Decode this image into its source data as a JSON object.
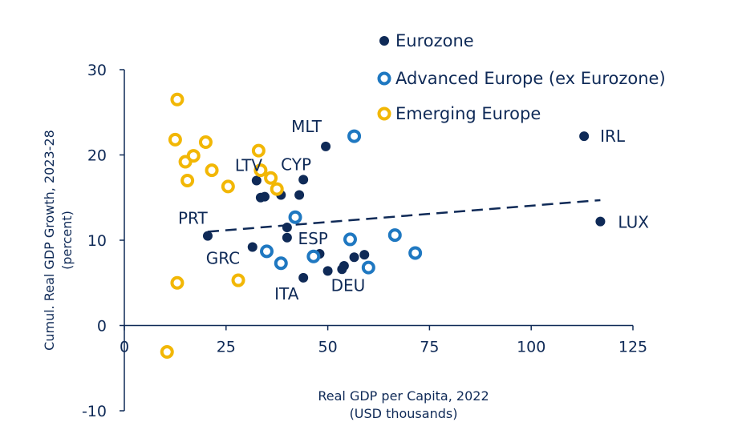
{
  "chart_data": {
    "type": "scatter",
    "xlabel": [
      "Real GDP per Capita, 2022",
      "(USD thousands)"
    ],
    "ylabel": [
      "Cumul. Real GDP Growth, 2023-28",
      "(percent)"
    ],
    "xlim": [
      0,
      125
    ],
    "ylim": [
      -10,
      30
    ],
    "xticks": [
      0,
      25,
      50,
      75,
      100,
      125
    ],
    "yticks": [
      -10,
      0,
      10,
      20,
      30
    ],
    "grid": false,
    "legend_position": "top-right",
    "colors": {
      "eurozone": "#0f2a57",
      "advanced": "#1f78c1",
      "emerging": "#f2b705",
      "axis": "#0f2a57"
    },
    "series": [
      {
        "name": "Eurozone",
        "key": "eurozone",
        "marker": "filled",
        "points": [
          {
            "x": 20.5,
            "y": 10.5
          },
          {
            "x": 31.5,
            "y": 9.2
          },
          {
            "x": 32.5,
            "y": 17.0
          },
          {
            "x": 33.5,
            "y": 15.0
          },
          {
            "x": 34.5,
            "y": 15.1
          },
          {
            "x": 38.5,
            "y": 15.3
          },
          {
            "x": 40.0,
            "y": 11.5
          },
          {
            "x": 40.0,
            "y": 10.3
          },
          {
            "x": 43.0,
            "y": 15.3
          },
          {
            "x": 44.0,
            "y": 17.1
          },
          {
            "x": 44.0,
            "y": 5.6
          },
          {
            "x": 48.0,
            "y": 8.4
          },
          {
            "x": 49.5,
            "y": 21.0
          },
          {
            "x": 50.0,
            "y": 6.4
          },
          {
            "x": 53.5,
            "y": 6.6
          },
          {
            "x": 54.0,
            "y": 7.0
          },
          {
            "x": 56.5,
            "y": 8.0
          },
          {
            "x": 59.0,
            "y": 8.3
          },
          {
            "x": 113.0,
            "y": 22.2
          },
          {
            "x": 117.0,
            "y": 12.2
          }
        ]
      },
      {
        "name": "Advanced Europe (ex Eurozone)",
        "key": "advanced",
        "marker": "ring",
        "points": [
          {
            "x": 35.0,
            "y": 8.7
          },
          {
            "x": 38.5,
            "y": 7.3
          },
          {
            "x": 42.0,
            "y": 12.7
          },
          {
            "x": 46.5,
            "y": 8.1
          },
          {
            "x": 55.5,
            "y": 10.1
          },
          {
            "x": 56.5,
            "y": 22.2
          },
          {
            "x": 60.0,
            "y": 6.8
          },
          {
            "x": 66.5,
            "y": 10.6
          },
          {
            "x": 71.5,
            "y": 8.5
          }
        ]
      },
      {
        "name": "Emerging Europe",
        "key": "emerging",
        "marker": "ring",
        "points": [
          {
            "x": 10.5,
            "y": -3.1
          },
          {
            "x": 12.5,
            "y": 21.8
          },
          {
            "x": 13.0,
            "y": 26.5
          },
          {
            "x": 13.0,
            "y": 5.0
          },
          {
            "x": 15.0,
            "y": 19.2
          },
          {
            "x": 15.5,
            "y": 17.0
          },
          {
            "x": 17.0,
            "y": 19.9
          },
          {
            "x": 20.0,
            "y": 21.5
          },
          {
            "x": 21.5,
            "y": 18.2
          },
          {
            "x": 25.5,
            "y": 16.3
          },
          {
            "x": 28.0,
            "y": 5.3
          },
          {
            "x": 33.0,
            "y": 20.5
          },
          {
            "x": 33.5,
            "y": 18.2
          },
          {
            "x": 36.0,
            "y": 17.3
          },
          {
            "x": 37.5,
            "y": 16.0
          }
        ]
      }
    ],
    "trendline": {
      "style": "dashed",
      "x": [
        20.5,
        117.0
      ],
      "y": [
        11.0,
        14.7
      ]
    },
    "annotations": [
      {
        "label": "MLT",
        "x": 49.5,
        "y": 21.0
      },
      {
        "label": "IRL",
        "x": 113.0,
        "y": 22.2
      },
      {
        "label": "LTV",
        "x": 32.5,
        "y": 17.0
      },
      {
        "label": "CYP",
        "x": 44.0,
        "y": 17.1
      },
      {
        "label": "PRT",
        "x": 20.5,
        "y": 10.5
      },
      {
        "label": "LUX",
        "x": 117.0,
        "y": 12.2
      },
      {
        "label": "ESP",
        "x": 48.0,
        "y": 8.4
      },
      {
        "label": "GRC",
        "x": 31.5,
        "y": 9.2
      },
      {
        "label": "ITA",
        "x": 44.0,
        "y": 5.6
      },
      {
        "label": "DEU",
        "x": 56.5,
        "y": 8.0
      }
    ]
  }
}
